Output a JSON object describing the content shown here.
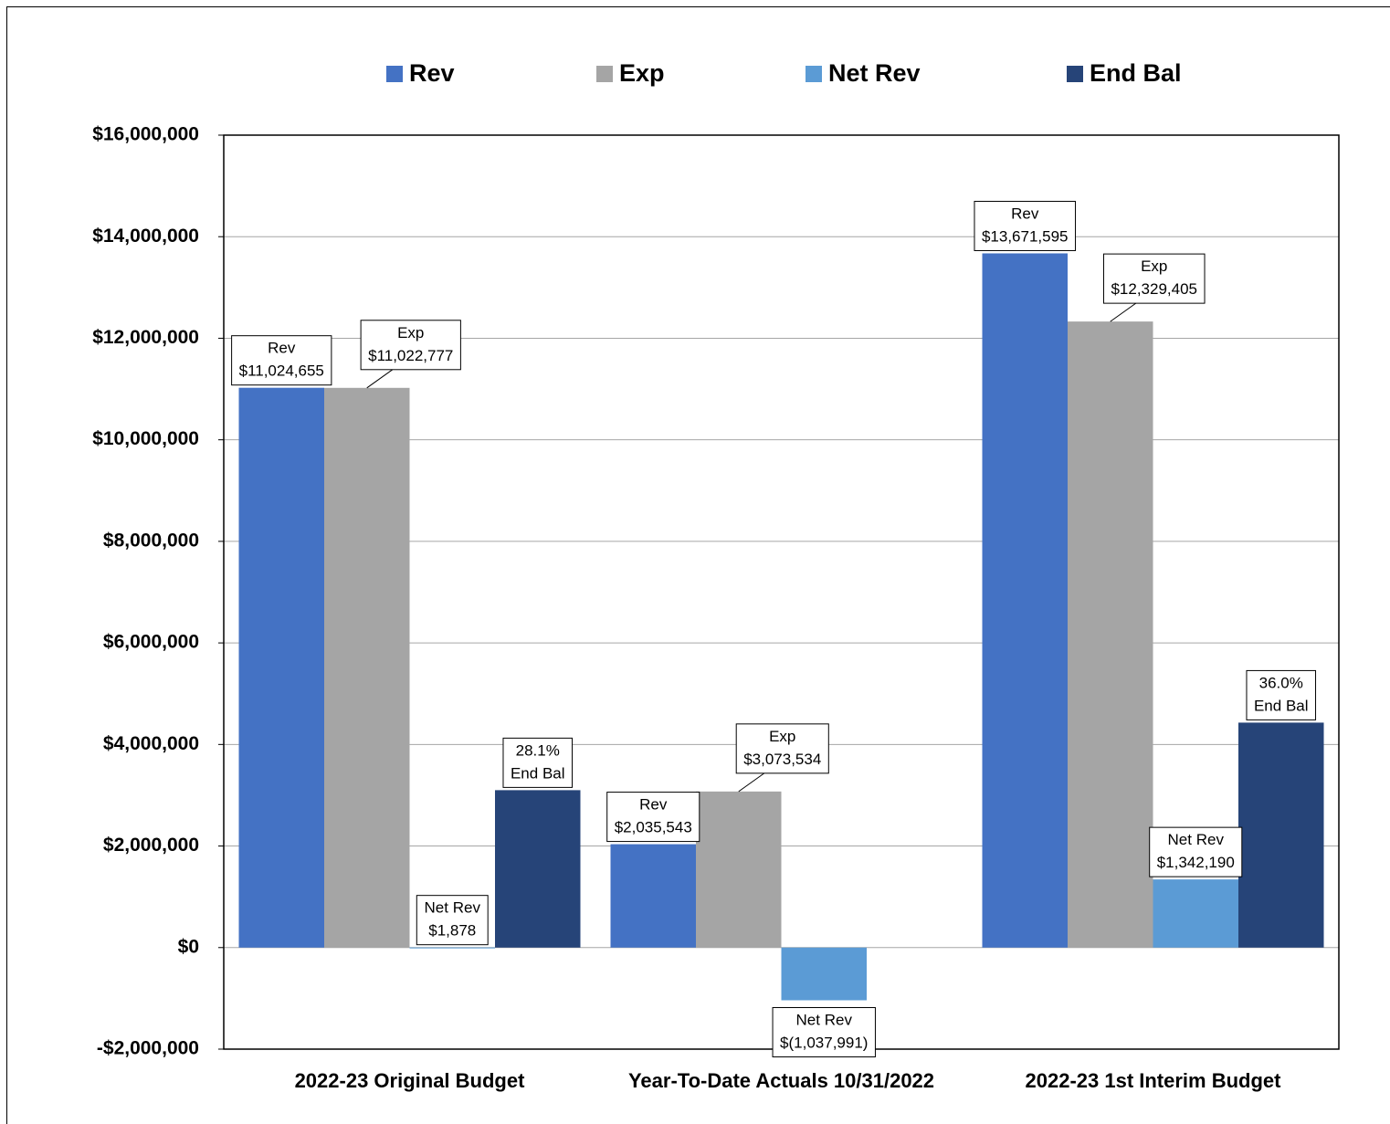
{
  "chart_data": {
    "type": "bar",
    "categories": [
      "2022-23 Original Budget",
      "Year-To-Date Actuals 10/31/2022",
      "2022-23 1st Interim Budget"
    ],
    "series": [
      {
        "name": "Rev",
        "color": "#4472c4",
        "values": [
          11024655,
          2035543,
          13671595
        ],
        "value_labels": [
          "$11,024,655",
          "$2,035,543",
          "$13,671,595"
        ]
      },
      {
        "name": "Exp",
        "color": "#a5a5a5",
        "values": [
          11022777,
          3073534,
          12329405
        ],
        "value_labels": [
          "$11,022,777",
          "$3,073,534",
          "$12,329,405"
        ]
      },
      {
        "name": "Net Rev",
        "color": "#5b9bd5",
        "values": [
          1878,
          -1037991,
          1342190
        ],
        "value_labels": [
          "$1,878",
          "$(1,037,991)",
          "$1,342,190"
        ]
      },
      {
        "name": "End Bal",
        "color": "#264478",
        "values": [
          3100000,
          null,
          4430000
        ],
        "annotations": [
          "28.1%",
          null,
          "36.0%"
        ]
      }
    ],
    "ylim": [
      -2000000,
      16000000
    ],
    "yticks": [
      {
        "value": -2000000,
        "label": "-$2,000,000"
      },
      {
        "value": 0,
        "label": "$0"
      },
      {
        "value": 2000000,
        "label": "$2,000,000"
      },
      {
        "value": 4000000,
        "label": "$4,000,000"
      },
      {
        "value": 6000000,
        "label": "$6,000,000"
      },
      {
        "value": 8000000,
        "label": "$8,000,000"
      },
      {
        "value": 10000000,
        "label": "$10,000,000"
      },
      {
        "value": 12000000,
        "label": "$12,000,000"
      },
      {
        "value": 14000000,
        "label": "$14,000,000"
      },
      {
        "value": 16000000,
        "label": "$16,000,000"
      }
    ],
    "grid": true,
    "legend": "top"
  }
}
